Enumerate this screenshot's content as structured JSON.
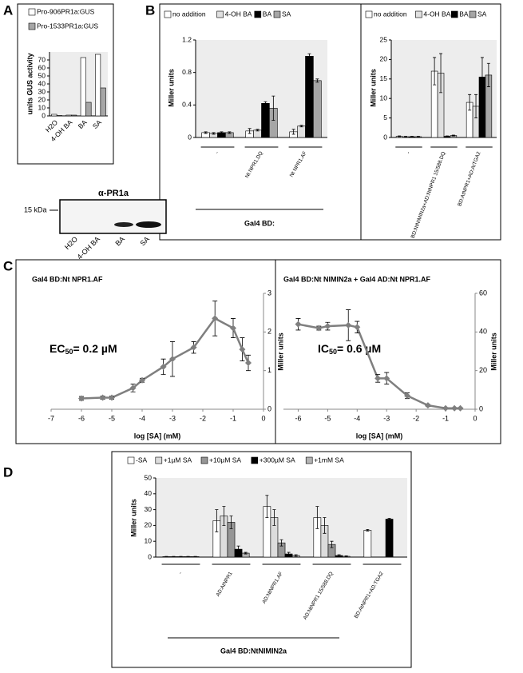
{
  "chart_data": [
    {
      "panel": "A",
      "type": "bar",
      "ylabel": "units GUS activity",
      "categories": [
        "H2O",
        "4-OH BA",
        "BA",
        "SA"
      ],
      "series": [
        {
          "name": "Pro-906PR1a:GUS",
          "color": "#ffffff",
          "values": [
            2,
            1,
            73,
            77
          ]
        },
        {
          "name": "Pro-1533PR1a:GUS",
          "color": "#a6a6a6",
          "values": [
            0.5,
            1,
            17,
            35
          ]
        }
      ],
      "ylim": [
        0,
        80
      ],
      "yticks": [
        0,
        10,
        20,
        30,
        40,
        50,
        60,
        70
      ],
      "plot_background": "#ededed"
    },
    {
      "type": "blot",
      "title": "α-PR1a",
      "marker": "15 kDa",
      "lanes": [
        "H2O",
        "4-OH BA",
        "BA",
        "SA"
      ]
    },
    {
      "panel": "B",
      "type": "bar",
      "ylabel": "Miller units",
      "group_label": "Gal4 BD:",
      "categories": [
        "-",
        "Nt NPR1.DQ",
        "Nt NPR1.AF"
      ],
      "series": [
        {
          "name": "no addition",
          "color": "#ffffff",
          "values": [
            0.06,
            0.08,
            0.07
          ],
          "errors": [
            0.01,
            0.03,
            0.03
          ]
        },
        {
          "name": "4-OH BA",
          "color": "#e0e0e0",
          "values": [
            0.05,
            0.09,
            0.14
          ],
          "errors": [
            0.01,
            0.01,
            0.01
          ]
        },
        {
          "name": "BA",
          "color": "#000000",
          "values": [
            0.06,
            0.42,
            1.0
          ],
          "errors": [
            0.01,
            0.02,
            0.03
          ]
        },
        {
          "name": "SA",
          "color": "#a6a6a6",
          "values": [
            0.06,
            0.36,
            0.7
          ],
          "errors": [
            0.01,
            0.15,
            0.02
          ]
        }
      ],
      "ylim": [
        0,
        1.2
      ],
      "yticks": [
        0,
        0.4,
        0.8,
        1.2
      ],
      "plot_background": "#ededed"
    },
    {
      "type": "bar",
      "ylabel": "Miller units",
      "categories": [
        "-",
        "BD:NtNIMIN2a+AD:NtNPR1 15/588.DQ",
        "BD:AtNPR1+AD:AtTGA2"
      ],
      "series": [
        {
          "name": "no addition",
          "color": "#ffffff",
          "values": [
            0.3,
            17,
            9
          ],
          "errors": [
            0.1,
            3.5,
            2
          ]
        },
        {
          "name": "4-OH BA",
          "color": "#e0e0e0",
          "values": [
            0.2,
            16.5,
            8
          ],
          "errors": [
            0.1,
            5,
            3
          ]
        },
        {
          "name": "BA",
          "color": "#000000",
          "values": [
            0.2,
            0.3,
            15.5
          ],
          "errors": [
            0.1,
            0.1,
            5
          ]
        },
        {
          "name": "SA",
          "color": "#a6a6a6",
          "values": [
            0.2,
            0.5,
            16
          ],
          "errors": [
            0.1,
            0.1,
            3
          ]
        }
      ],
      "ylim": [
        0,
        25
      ],
      "yticks": [
        0,
        5,
        10,
        15,
        20,
        25
      ],
      "plot_background": "#ededed"
    },
    {
      "panel": "C",
      "type": "line",
      "title": "Gal4 BD:Nt NPR1.AF",
      "annotation": {
        "text": "EC",
        "sub": "50",
        "rest": "= 0.2 µM"
      },
      "xlabel": "log [SA] (mM)",
      "ylabel": "Miller units",
      "x": [
        -6,
        -5.3,
        -5,
        -4.3,
        -4,
        -3.3,
        -3,
        -2.3,
        -1.6,
        -1,
        -0.7,
        -0.5
      ],
      "series": [
        {
          "color": "#7f7f7f",
          "values": [
            0.28,
            0.3,
            0.3,
            0.55,
            0.75,
            1.1,
            1.3,
            1.6,
            2.35,
            2.1,
            1.55,
            1.2
          ],
          "errors": [
            0.05,
            0.04,
            0.04,
            0.1,
            0.05,
            0.2,
            0.45,
            0.15,
            0.45,
            0.25,
            0.3,
            0.2
          ]
        }
      ],
      "xlim": [
        -7,
        0
      ],
      "xticks": [
        -7,
        -6,
        -5,
        -4,
        -3,
        -2,
        -1,
        0
      ],
      "ylim": [
        0,
        3
      ],
      "yticks": [
        0,
        1,
        2,
        3
      ]
    },
    {
      "type": "line",
      "title": "Gal4 BD:Nt NIMIN2a + Gal4 AD:Nt NPR1.AF",
      "annotation": {
        "text": "IC",
        "sub": "50",
        "rest": "= 0.6 µM"
      },
      "xlabel": "log [SA] (mM)",
      "ylabel": "Miller units",
      "x": [
        -6,
        -5.3,
        -5,
        -4.3,
        -4,
        -3.3,
        -3,
        -2.3,
        -1.6,
        -1,
        -0.7,
        -0.5
      ],
      "series": [
        {
          "color": "#7f7f7f",
          "values": [
            44,
            42,
            43,
            43.5,
            42.5,
            16,
            16,
            7,
            2,
            0.5,
            0.5,
            0.5
          ],
          "errors": [
            3,
            1,
            2,
            8,
            3,
            2,
            3,
            1.5,
            0.5,
            0.3,
            0.3,
            0.3
          ]
        }
      ],
      "xlim": [
        -6.5,
        0
      ],
      "xticks": [
        -6,
        -5,
        -4,
        -3,
        -2,
        -1,
        0
      ],
      "ylim": [
        0,
        60
      ],
      "yticks": [
        0,
        20,
        40,
        60
      ]
    },
    {
      "panel": "D",
      "type": "bar",
      "ylabel": "Miller units",
      "group_label": "Gal4 BD:NtNIMIN2a",
      "categories": [
        "-",
        "AD:AtNPR1",
        "AD:NtNPR1.AF",
        "AD:NtNPR1 15/588.DQ",
        "BD:AtNPR1+AD:TGA2"
      ],
      "series": [
        {
          "name": "-SA",
          "color": "#ffffff",
          "values": [
            0.3,
            23,
            32,
            25,
            17
          ],
          "errors": [
            0.1,
            7,
            7,
            7,
            0.5
          ]
        },
        {
          "name": "+1µM SA",
          "color": "#dcdcdc",
          "values": [
            0.3,
            26,
            25,
            20,
            null
          ],
          "errors": [
            0.1,
            6,
            5,
            5,
            null
          ]
        },
        {
          "name": "+10µM SA",
          "color": "#969696",
          "values": [
            0.3,
            22,
            9,
            8,
            null
          ],
          "errors": [
            0.1,
            4,
            2,
            2,
            null
          ]
        },
        {
          "name": "+300µM SA",
          "color": "#000000",
          "values": [
            0.3,
            5,
            2,
            1,
            24
          ],
          "errors": [
            0.1,
            2,
            1,
            0.5,
            0.5
          ]
        },
        {
          "name": "+1mM SA",
          "color": "#b4b4b4",
          "values": [
            0.3,
            2.5,
            1,
            0.5,
            null
          ],
          "errors": [
            0.1,
            0.5,
            0.5,
            0.3,
            null
          ]
        }
      ],
      "ylim": [
        0,
        50
      ],
      "yticks": [
        0,
        10,
        20,
        30,
        40,
        50
      ],
      "plot_background": "#ededed"
    }
  ]
}
